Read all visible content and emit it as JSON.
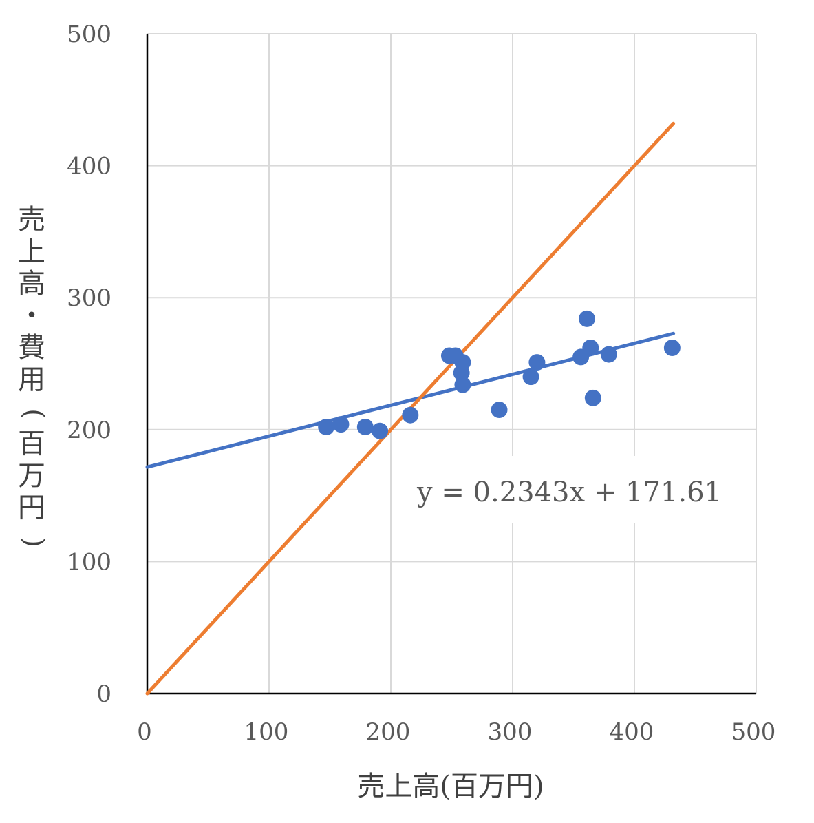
{
  "chart_data": {
    "type": "scatter",
    "xlabel": "売上高(百万円)",
    "ylabel": "売上高・費用(百万円)",
    "xlim": [
      0,
      500
    ],
    "ylim": [
      0,
      500
    ],
    "x_ticks": [
      "0",
      "100",
      "200",
      "300",
      "400",
      "500"
    ],
    "y_ticks": [
      "0",
      "100",
      "200",
      "300",
      "400",
      "500"
    ],
    "grid": true,
    "series": [
      {
        "kind": "scatter",
        "color": "#4472C4",
        "points": [
          {
            "x": 147,
            "y": 202
          },
          {
            "x": 159,
            "y": 204
          },
          {
            "x": 179,
            "y": 202
          },
          {
            "x": 191,
            "y": 199
          },
          {
            "x": 216,
            "y": 211
          },
          {
            "x": 248,
            "y": 256
          },
          {
            "x": 253,
            "y": 256
          },
          {
            "x": 259,
            "y": 251
          },
          {
            "x": 258,
            "y": 243
          },
          {
            "x": 259,
            "y": 234
          },
          {
            "x": 289,
            "y": 215
          },
          {
            "x": 315,
            "y": 240
          },
          {
            "x": 320,
            "y": 251
          },
          {
            "x": 356,
            "y": 255
          },
          {
            "x": 361,
            "y": 284
          },
          {
            "x": 364,
            "y": 262
          },
          {
            "x": 366,
            "y": 224
          },
          {
            "x": 379,
            "y": 257
          },
          {
            "x": 431,
            "y": 262
          }
        ]
      },
      {
        "kind": "trendline",
        "color": "#4472C4",
        "slope": 0.2343,
        "intercept": 171.61,
        "x_range": [
          0,
          432
        ]
      },
      {
        "kind": "line",
        "color": "#ED7D31",
        "points": [
          {
            "x": 0,
            "y": 0
          },
          {
            "x": 432,
            "y": 432
          }
        ]
      }
    ],
    "annotations": [
      {
        "text": "y = 0.2343x + 171.61"
      }
    ]
  }
}
